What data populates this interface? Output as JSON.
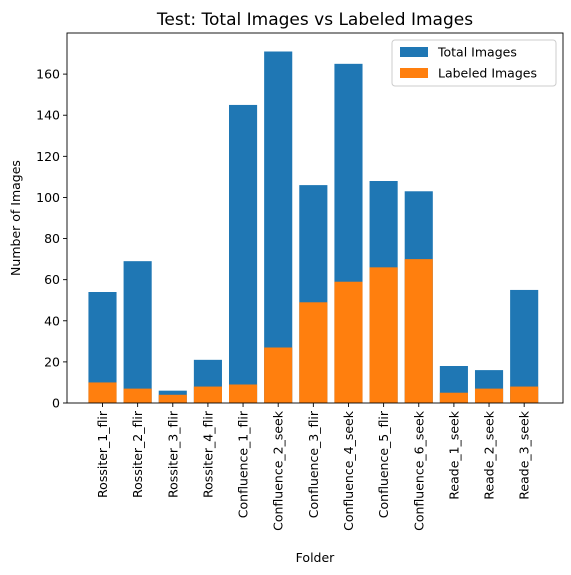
{
  "chart_data": {
    "type": "bar",
    "title": "Test: Total Images vs Labeled Images",
    "xlabel": "Folder",
    "ylabel": "Number of Images",
    "ylim": [
      0,
      180
    ],
    "yticks": [
      0,
      20,
      40,
      60,
      80,
      100,
      120,
      140,
      160
    ],
    "grid": false,
    "legend_position": "top-right",
    "overlay": true,
    "categories": [
      "Rossiter_1_flir",
      "Rossiter_2_flir",
      "Rossiter_3_flir",
      "Rossiter_4_flir",
      "Confluence_1_flir",
      "Confluence_2_seek",
      "Confluence_3_flir",
      "Confluence_4_seek",
      "Confluence_5_flir",
      "Confluence_6_seek",
      "Reade_1_seek",
      "Reade_2_seek",
      "Reade_3_seek"
    ],
    "series": [
      {
        "name": "Total Images",
        "color": "#1f77b4",
        "values": [
          54,
          69,
          6,
          21,
          145,
          171,
          106,
          165,
          108,
          103,
          18,
          16,
          55
        ]
      },
      {
        "name": "Labeled Images",
        "color": "#ff7f0e",
        "values": [
          10,
          7,
          4,
          8,
          9,
          27,
          49,
          59,
          66,
          70,
          5,
          7,
          8
        ]
      }
    ]
  }
}
